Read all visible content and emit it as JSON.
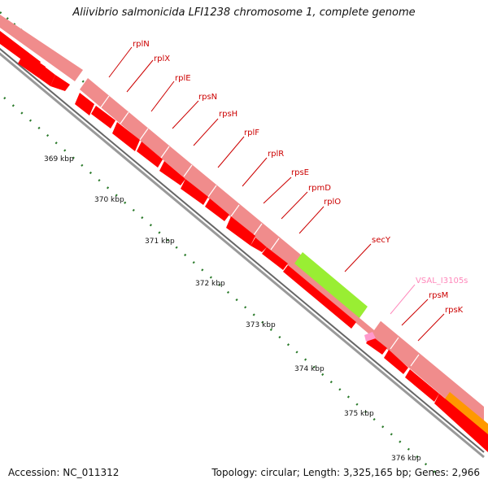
{
  "title": "Aliivibrio salmonicida LFI1238 chromosome 1, complete genome",
  "footer": {
    "accession": "Accession: NC_011312",
    "summary": "Topology: circular; Length: 3,325,165 bp; Genes: 2,966"
  },
  "colors": {
    "gene": "#ff0000",
    "gene_label": "#cc0000",
    "gene_light": "#f08c8c",
    "secY": "#99ee33",
    "orange": "#ff9900",
    "pseudo": "#ff99cc",
    "pseudo_label": "#ff88bb",
    "ruler_dots": "#2a7a2a",
    "backbone": "#888888"
  },
  "ruler_labels": [
    "369 kbp",
    "370 kbp",
    "371 kbp",
    "372 kbp",
    "373 kbp",
    "374 kbp",
    "375 kbp",
    "376 kbp"
  ],
  "gene_labels": [
    "rplN",
    "rplX",
    "rplE",
    "rpsN",
    "rpsH",
    "rplF",
    "rplR",
    "rpsE",
    "rpmD",
    "rplO",
    "secY",
    "VSAL_I3105s",
    "rpsM",
    "rpsK"
  ]
}
